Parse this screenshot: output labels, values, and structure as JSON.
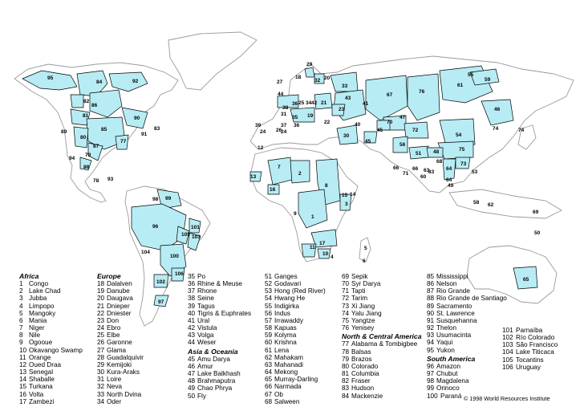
{
  "copyright": "© 1998 World Resources Institute",
  "legend": {
    "africa": {
      "title": "Africa",
      "items": [
        [
          "1",
          "Congo"
        ],
        [
          "2",
          "Lake Chad"
        ],
        [
          "3",
          "Jubba"
        ],
        [
          "4",
          "Limpopo"
        ],
        [
          "5",
          "Mangoky"
        ],
        [
          "6",
          "Mania"
        ],
        [
          "7",
          "Niger"
        ],
        [
          "8",
          "Nile"
        ],
        [
          "9",
          "Ogooue"
        ],
        [
          "10",
          "Okavango Swamp"
        ],
        [
          "11",
          "Orange"
        ],
        [
          "12",
          "Oued Draa"
        ],
        [
          "13",
          "Senegal"
        ],
        [
          "14",
          "Shaballe"
        ],
        [
          "15",
          "Turkana"
        ],
        [
          "16",
          "Volta"
        ],
        [
          "17",
          "Zambezi"
        ]
      ]
    },
    "europe": {
      "title": "Europe",
      "items": [
        [
          "18",
          "Dalalven"
        ],
        [
          "19",
          "Danube"
        ],
        [
          "20",
          "Daugava"
        ],
        [
          "21",
          "Dnieper"
        ],
        [
          "22",
          "Dniester"
        ],
        [
          "23",
          "Don"
        ],
        [
          "24",
          "Ebro"
        ],
        [
          "25",
          "Elbe"
        ],
        [
          "26",
          "Garonne"
        ],
        [
          "27",
          "Glama"
        ],
        [
          "28",
          "Guadalquivir"
        ],
        [
          "29",
          "Kemijoki"
        ],
        [
          "30",
          "Kura-Araks"
        ],
        [
          "31",
          "Loire"
        ],
        [
          "32",
          "Neva"
        ],
        [
          "33",
          "North Dvina"
        ],
        [
          "34",
          "Oder"
        ]
      ]
    },
    "europe2": {
      "items": [
        [
          "35",
          "Po"
        ],
        [
          "36",
          "Rhine & Meuse"
        ],
        [
          "37",
          "Rhone"
        ],
        [
          "38",
          "Seine"
        ],
        [
          "39",
          "Tagus"
        ],
        [
          "40",
          "Tigris & Euphrates"
        ],
        [
          "41",
          "Ural"
        ],
        [
          "42",
          "Vistula"
        ],
        [
          "43",
          "Volga"
        ],
        [
          "44",
          "Weser"
        ]
      ]
    },
    "asia": {
      "title": "Asia & Oceania",
      "items": [
        [
          "45",
          "Amu Darya"
        ],
        [
          "46",
          "Amur"
        ],
        [
          "47",
          "Lake Balkhash"
        ],
        [
          "48",
          "Brahmaputra"
        ],
        [
          "49",
          "Chao Phrya"
        ],
        [
          "50",
          "Fly"
        ]
      ]
    },
    "asia2": {
      "items": [
        [
          "51",
          "Ganges"
        ],
        [
          "52",
          "Godavari"
        ],
        [
          "53",
          "Hong (Red River)"
        ],
        [
          "54",
          "Hwang He"
        ],
        [
          "55",
          "Indigirka"
        ],
        [
          "56",
          "Indus"
        ],
        [
          "57",
          "Irrawaddy"
        ],
        [
          "58",
          "Kapuas"
        ],
        [
          "59",
          "Kolyma"
        ],
        [
          "60",
          "Krishna"
        ],
        [
          "61",
          "Lena"
        ],
        [
          "62",
          "Mahakam"
        ],
        [
          "63",
          "Mahanadi"
        ],
        [
          "64",
          "Mekong"
        ],
        [
          "65",
          "Murray-Darling"
        ],
        [
          "66",
          "Narmada"
        ],
        [
          "67",
          "Ob"
        ],
        [
          "68",
          "Salween"
        ]
      ]
    },
    "asia3": {
      "items": [
        [
          "69",
          "Sepik"
        ],
        [
          "70",
          "Syr Darya"
        ],
        [
          "71",
          "Tapti"
        ],
        [
          "72",
          "Tarim"
        ],
        [
          "73",
          "Xi Jiang"
        ],
        [
          "74",
          "Yalu Jiang"
        ],
        [
          "75",
          "Yangtze"
        ],
        [
          "76",
          "Yenisey"
        ]
      ]
    },
    "namerica": {
      "title": "North & Central America",
      "items": [
        [
          "77",
          "Alabama & Tombigbee"
        ],
        [
          "78",
          "Balsas"
        ],
        [
          "79",
          "Brazos"
        ],
        [
          "80",
          "Colorado"
        ],
        [
          "81",
          "Columbia"
        ],
        [
          "82",
          "Fraser"
        ],
        [
          "83",
          "Hudson"
        ],
        [
          "84",
          "Mackenzie"
        ]
      ]
    },
    "namerica2": {
      "items": [
        [
          "85",
          "Mississippi"
        ],
        [
          "86",
          "Nelson"
        ],
        [
          "87",
          "Rio Grande"
        ],
        [
          "88",
          "Rio Grande de Santiago"
        ],
        [
          "89",
          "Sacramento"
        ],
        [
          "90",
          "St. Lawrence"
        ],
        [
          "91",
          "Susquehanna"
        ],
        [
          "92",
          "Thelon"
        ],
        [
          "93",
          "Usumacinta"
        ],
        [
          "94",
          "Yaqui"
        ],
        [
          "95",
          "Yukon"
        ]
      ]
    },
    "samerica": {
      "title": "South America",
      "items": [
        [
          "96",
          "Amazon"
        ],
        [
          "97",
          "Chubut"
        ],
        [
          "98",
          "Magdalena"
        ],
        [
          "99",
          "Orinoco"
        ],
        [
          "100",
          "Paraná"
        ]
      ]
    },
    "samerica2": {
      "items": [
        [
          "101",
          "Parnaíba"
        ],
        [
          "102",
          "Río Colorado"
        ],
        [
          "103",
          "São Francisco"
        ],
        [
          "104",
          "Lake Titicaca"
        ],
        [
          "105",
          "Tocantins"
        ],
        [
          "106",
          "Uruguay"
        ]
      ]
    }
  },
  "basin_numbers": [
    "1",
    "2",
    "3",
    "4",
    "5",
    "6",
    "7",
    "8",
    "9",
    "10",
    "11",
    "12",
    "13",
    "14",
    "15",
    "16",
    "17",
    "18",
    "19",
    "20",
    "21",
    "22",
    "23",
    "24",
    "25",
    "26",
    "27",
    "28",
    "29",
    "30",
    "31",
    "32",
    "33",
    "34",
    "35",
    "36",
    "37",
    "38",
    "39",
    "40",
    "41",
    "42",
    "43",
    "44",
    "45",
    "46",
    "47",
    "48",
    "49",
    "50",
    "51",
    "52",
    "53",
    "54",
    "55",
    "56",
    "57",
    "58",
    "59",
    "60",
    "61",
    "62",
    "63",
    "64",
    "65",
    "66",
    "67",
    "68",
    "69",
    "70",
    "71",
    "72",
    "73",
    "74",
    "75",
    "76",
    "77",
    "78",
    "79",
    "80",
    "81",
    "82",
    "83",
    "84",
    "85",
    "86",
    "87",
    "88",
    "89",
    "90",
    "91",
    "92",
    "93",
    "94",
    "95",
    "96",
    "97",
    "98",
    "99",
    "100",
    "101",
    "102",
    "103",
    "104",
    "105",
    "106"
  ]
}
